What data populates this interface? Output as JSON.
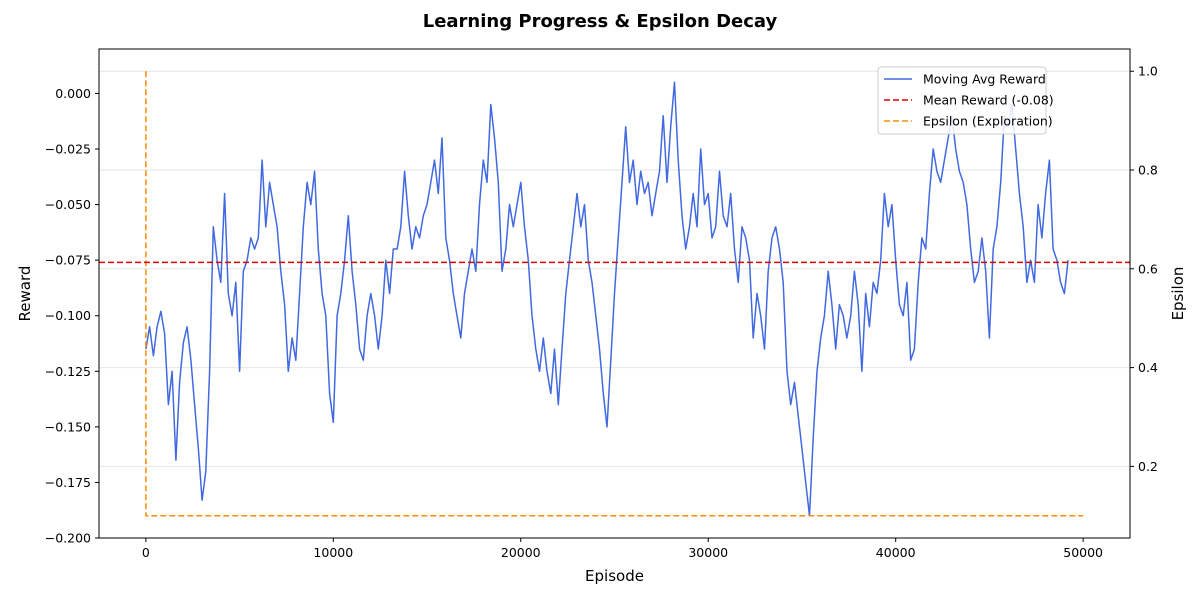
{
  "chart_data": {
    "type": "line",
    "title": "Learning Progress & Epsilon Decay",
    "xlabel": "Episode",
    "ylabel_left": "Reward",
    "ylabel_right": "Epsilon",
    "xlim": [
      -2500,
      52500
    ],
    "ylim_left": [
      -0.2,
      0.02
    ],
    "ylim_right": [
      0.055,
      1.045
    ],
    "x_ticks": [
      0,
      10000,
      20000,
      30000,
      40000,
      50000
    ],
    "x_tick_labels": [
      "0",
      "10000",
      "20000",
      "30000",
      "40000",
      "50000"
    ],
    "y_left_ticks": [
      0.0,
      -0.025,
      -0.05,
      -0.075,
      -0.1,
      -0.125,
      -0.15,
      -0.175,
      -0.2
    ],
    "y_left_tick_labels": [
      "0.000",
      "−0.025",
      "−0.050",
      "−0.075",
      "−0.100",
      "−0.125",
      "−0.150",
      "−0.175",
      "−0.200"
    ],
    "y_right_ticks": [
      1.0,
      0.8,
      0.6,
      0.4,
      0.2
    ],
    "y_right_tick_labels": [
      "1.0",
      "0.8",
      "0.6",
      "0.4",
      "0.2"
    ],
    "grid": "horizontal (right axis ticks)",
    "legend_position": "top-right",
    "series": [
      {
        "name": "Moving Avg Reward",
        "axis": "left",
        "color": "#4169E1",
        "style": "solid",
        "points": [
          [
            0,
            -0.115
          ],
          [
            200,
            -0.105
          ],
          [
            400,
            -0.118
          ],
          [
            600,
            -0.105
          ],
          [
            800,
            -0.098
          ],
          [
            1000,
            -0.108
          ],
          [
            1200,
            -0.14
          ],
          [
            1400,
            -0.125
          ],
          [
            1600,
            -0.165
          ],
          [
            1800,
            -0.13
          ],
          [
            2000,
            -0.112
          ],
          [
            2200,
            -0.105
          ],
          [
            2400,
            -0.12
          ],
          [
            2600,
            -0.14
          ],
          [
            2800,
            -0.16
          ],
          [
            3000,
            -0.183
          ],
          [
            3200,
            -0.17
          ],
          [
            3400,
            -0.125
          ],
          [
            3600,
            -0.06
          ],
          [
            3800,
            -0.075
          ],
          [
            4000,
            -0.085
          ],
          [
            4200,
            -0.045
          ],
          [
            4400,
            -0.09
          ],
          [
            4600,
            -0.1
          ],
          [
            4800,
            -0.085
          ],
          [
            5000,
            -0.125
          ],
          [
            5200,
            -0.08
          ],
          [
            5400,
            -0.075
          ],
          [
            5600,
            -0.065
          ],
          [
            5800,
            -0.07
          ],
          [
            6000,
            -0.065
          ],
          [
            6200,
            -0.03
          ],
          [
            6400,
            -0.06
          ],
          [
            6600,
            -0.04
          ],
          [
            6800,
            -0.05
          ],
          [
            7000,
            -0.06
          ],
          [
            7200,
            -0.08
          ],
          [
            7400,
            -0.095
          ],
          [
            7600,
            -0.125
          ],
          [
            7800,
            -0.11
          ],
          [
            8000,
            -0.12
          ],
          [
            8200,
            -0.09
          ],
          [
            8400,
            -0.06
          ],
          [
            8600,
            -0.04
          ],
          [
            8800,
            -0.05
          ],
          [
            9000,
            -0.035
          ],
          [
            9200,
            -0.07
          ],
          [
            9400,
            -0.09
          ],
          [
            9600,
            -0.1
          ],
          [
            9800,
            -0.135
          ],
          [
            10000,
            -0.148
          ],
          [
            10200,
            -0.1
          ],
          [
            10400,
            -0.09
          ],
          [
            10600,
            -0.075
          ],
          [
            10800,
            -0.055
          ],
          [
            11000,
            -0.08
          ],
          [
            11200,
            -0.095
          ],
          [
            11400,
            -0.115
          ],
          [
            11600,
            -0.12
          ],
          [
            11800,
            -0.1
          ],
          [
            12000,
            -0.09
          ],
          [
            12200,
            -0.1
          ],
          [
            12400,
            -0.115
          ],
          [
            12600,
            -0.1
          ],
          [
            12800,
            -0.075
          ],
          [
            13000,
            -0.09
          ],
          [
            13200,
            -0.07
          ],
          [
            13400,
            -0.07
          ],
          [
            13600,
            -0.06
          ],
          [
            13800,
            -0.035
          ],
          [
            14000,
            -0.055
          ],
          [
            14200,
            -0.07
          ],
          [
            14400,
            -0.06
          ],
          [
            14600,
            -0.065
          ],
          [
            14800,
            -0.055
          ],
          [
            15000,
            -0.05
          ],
          [
            15200,
            -0.04
          ],
          [
            15400,
            -0.03
          ],
          [
            15600,
            -0.045
          ],
          [
            15800,
            -0.02
          ],
          [
            16000,
            -0.065
          ],
          [
            16200,
            -0.075
          ],
          [
            16400,
            -0.09
          ],
          [
            16600,
            -0.1
          ],
          [
            16800,
            -0.11
          ],
          [
            17000,
            -0.09
          ],
          [
            17200,
            -0.08
          ],
          [
            17400,
            -0.07
          ],
          [
            17600,
            -0.08
          ],
          [
            17800,
            -0.05
          ],
          [
            18000,
            -0.03
          ],
          [
            18200,
            -0.04
          ],
          [
            18400,
            -0.005
          ],
          [
            18600,
            -0.02
          ],
          [
            18800,
            -0.04
          ],
          [
            19000,
            -0.08
          ],
          [
            19200,
            -0.07
          ],
          [
            19400,
            -0.05
          ],
          [
            19600,
            -0.06
          ],
          [
            19800,
            -0.05
          ],
          [
            20000,
            -0.04
          ],
          [
            20200,
            -0.06
          ],
          [
            20400,
            -0.075
          ],
          [
            20600,
            -0.1
          ],
          [
            20800,
            -0.115
          ],
          [
            21000,
            -0.125
          ],
          [
            21200,
            -0.11
          ],
          [
            21400,
            -0.125
          ],
          [
            21600,
            -0.135
          ],
          [
            21800,
            -0.115
          ],
          [
            22000,
            -0.14
          ],
          [
            22200,
            -0.115
          ],
          [
            22400,
            -0.09
          ],
          [
            22600,
            -0.075
          ],
          [
            22800,
            -0.06
          ],
          [
            23000,
            -0.045
          ],
          [
            23200,
            -0.06
          ],
          [
            23400,
            -0.05
          ],
          [
            23600,
            -0.075
          ],
          [
            23800,
            -0.085
          ],
          [
            24000,
            -0.1
          ],
          [
            24200,
            -0.115
          ],
          [
            24400,
            -0.135
          ],
          [
            24600,
            -0.15
          ],
          [
            24800,
            -0.12
          ],
          [
            25000,
            -0.09
          ],
          [
            25200,
            -0.065
          ],
          [
            25400,
            -0.04
          ],
          [
            25600,
            -0.015
          ],
          [
            25800,
            -0.04
          ],
          [
            26000,
            -0.03
          ],
          [
            26200,
            -0.05
          ],
          [
            26400,
            -0.035
          ],
          [
            26600,
            -0.045
          ],
          [
            26800,
            -0.04
          ],
          [
            27000,
            -0.055
          ],
          [
            27200,
            -0.045
          ],
          [
            27400,
            -0.035
          ],
          [
            27600,
            -0.01
          ],
          [
            27800,
            -0.04
          ],
          [
            28000,
            -0.015
          ],
          [
            28200,
            0.005
          ],
          [
            28400,
            -0.03
          ],
          [
            28600,
            -0.055
          ],
          [
            28800,
            -0.07
          ],
          [
            29000,
            -0.06
          ],
          [
            29200,
            -0.045
          ],
          [
            29400,
            -0.06
          ],
          [
            29600,
            -0.025
          ],
          [
            29800,
            -0.05
          ],
          [
            30000,
            -0.045
          ],
          [
            30200,
            -0.065
          ],
          [
            30400,
            -0.06
          ],
          [
            30600,
            -0.035
          ],
          [
            30800,
            -0.055
          ],
          [
            31000,
            -0.06
          ],
          [
            31200,
            -0.045
          ],
          [
            31400,
            -0.07
          ],
          [
            31600,
            -0.085
          ],
          [
            31800,
            -0.06
          ],
          [
            32000,
            -0.065
          ],
          [
            32200,
            -0.075
          ],
          [
            32400,
            -0.11
          ],
          [
            32600,
            -0.09
          ],
          [
            32800,
            -0.1
          ],
          [
            33000,
            -0.115
          ],
          [
            33200,
            -0.08
          ],
          [
            33400,
            -0.065
          ],
          [
            33600,
            -0.06
          ],
          [
            33800,
            -0.07
          ],
          [
            34000,
            -0.085
          ],
          [
            34200,
            -0.125
          ],
          [
            34400,
            -0.14
          ],
          [
            34600,
            -0.13
          ],
          [
            34800,
            -0.145
          ],
          [
            35000,
            -0.16
          ],
          [
            35200,
            -0.175
          ],
          [
            35400,
            -0.19
          ],
          [
            35600,
            -0.155
          ],
          [
            35800,
            -0.125
          ],
          [
            36000,
            -0.11
          ],
          [
            36200,
            -0.1
          ],
          [
            36400,
            -0.08
          ],
          [
            36600,
            -0.095
          ],
          [
            36800,
            -0.115
          ],
          [
            37000,
            -0.095
          ],
          [
            37200,
            -0.1
          ],
          [
            37400,
            -0.11
          ],
          [
            37600,
            -0.1
          ],
          [
            37800,
            -0.08
          ],
          [
            38000,
            -0.095
          ],
          [
            38200,
            -0.125
          ],
          [
            38400,
            -0.09
          ],
          [
            38600,
            -0.105
          ],
          [
            38800,
            -0.085
          ],
          [
            39000,
            -0.09
          ],
          [
            39200,
            -0.075
          ],
          [
            39400,
            -0.045
          ],
          [
            39600,
            -0.06
          ],
          [
            39800,
            -0.05
          ],
          [
            40000,
            -0.075
          ],
          [
            40200,
            -0.095
          ],
          [
            40400,
            -0.1
          ],
          [
            40600,
            -0.085
          ],
          [
            40800,
            -0.12
          ],
          [
            41000,
            -0.115
          ],
          [
            41200,
            -0.085
          ],
          [
            41400,
            -0.065
          ],
          [
            41600,
            -0.07
          ],
          [
            41800,
            -0.045
          ],
          [
            42000,
            -0.025
          ],
          [
            42200,
            -0.035
          ],
          [
            42400,
            -0.04
          ],
          [
            42600,
            -0.03
          ],
          [
            42800,
            -0.02
          ],
          [
            43000,
            -0.01
          ],
          [
            43200,
            -0.025
          ],
          [
            43400,
            -0.035
          ],
          [
            43600,
            -0.04
          ],
          [
            43800,
            -0.05
          ],
          [
            44000,
            -0.07
          ],
          [
            44200,
            -0.085
          ],
          [
            44400,
            -0.08
          ],
          [
            44600,
            -0.065
          ],
          [
            44800,
            -0.08
          ],
          [
            45000,
            -0.11
          ],
          [
            45200,
            -0.07
          ],
          [
            45400,
            -0.06
          ],
          [
            45600,
            -0.04
          ],
          [
            45800,
            -0.01
          ],
          [
            46000,
            -0.015
          ],
          [
            46200,
            -0.005
          ],
          [
            46400,
            -0.025
          ],
          [
            46600,
            -0.045
          ],
          [
            46800,
            -0.06
          ],
          [
            47000,
            -0.085
          ],
          [
            47200,
            -0.075
          ],
          [
            47400,
            -0.085
          ],
          [
            47600,
            -0.05
          ],
          [
            47800,
            -0.065
          ],
          [
            48000,
            -0.045
          ],
          [
            48200,
            -0.03
          ],
          [
            48400,
            -0.07
          ],
          [
            48600,
            -0.075
          ],
          [
            48800,
            -0.085
          ],
          [
            49000,
            -0.09
          ],
          [
            49200,
            -0.075
          ]
        ]
      },
      {
        "name": "Mean Reward (-0.08)",
        "axis": "left",
        "color": "#DD0000",
        "style": "dashed",
        "y": -0.076
      },
      {
        "name": "Epsilon (Exploration)",
        "axis": "right",
        "color": "#FF8C00",
        "style": "dashed",
        "points": [
          [
            0,
            1.0
          ],
          [
            0,
            0.1
          ],
          [
            50000,
            0.1
          ]
        ]
      }
    ]
  }
}
